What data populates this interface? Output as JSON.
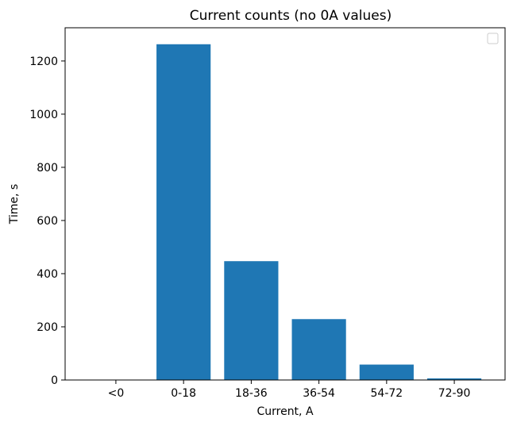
{
  "chart_data": {
    "type": "bar",
    "title": "Current counts (no 0A values)",
    "xlabel": "Current, A",
    "ylabel": "Time, s",
    "categories": [
      "<0",
      "0-18",
      "18-36",
      "36-54",
      "54-72",
      "72-90"
    ],
    "values": [
      0,
      1263,
      447,
      229,
      58,
      6
    ],
    "ylim": [
      0,
      1325
    ],
    "yticks": [
      0,
      200,
      400,
      600,
      800,
      1000,
      1200
    ],
    "bar_color": "#1f77b4",
    "legend": "top-right (empty)"
  }
}
